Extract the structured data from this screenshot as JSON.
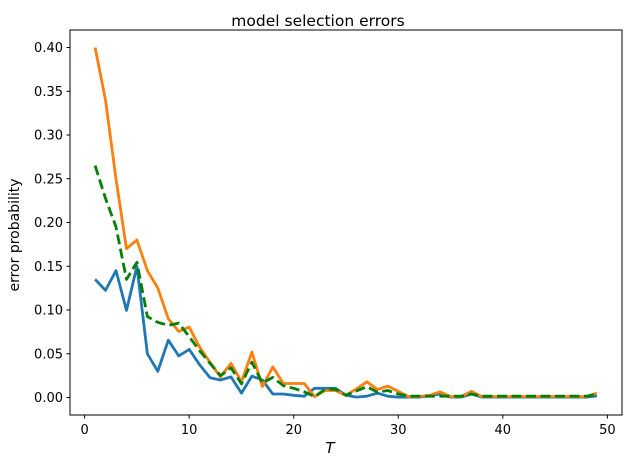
{
  "figure": {
    "title": "model selection errors",
    "xlabel": "T",
    "ylabel": "error probability"
  },
  "chart_data": {
    "type": "line",
    "title": "model selection errors",
    "xlabel": "T",
    "ylabel": "error probability",
    "grid": false,
    "legend_position": "none",
    "xlim": [
      -1.4,
      51.4
    ],
    "ylim": [
      -0.02,
      0.42
    ],
    "x_tick_labels": [
      "0",
      "10",
      "20",
      "30",
      "40",
      "50"
    ],
    "y_tick_labels": [
      "0.00",
      "0.05",
      "0.10",
      "0.15",
      "0.20",
      "0.25",
      "0.30",
      "0.35",
      "0.40"
    ],
    "x": [
      1,
      2,
      3,
      4,
      5,
      6,
      7,
      8,
      9,
      10,
      11,
      12,
      13,
      14,
      15,
      16,
      17,
      18,
      19,
      20,
      21,
      22,
      23,
      24,
      25,
      26,
      27,
      28,
      29,
      30,
      31,
      32,
      33,
      34,
      35,
      36,
      37,
      38,
      39,
      40,
      41,
      42,
      43,
      44,
      45,
      46,
      47,
      48,
      49
    ],
    "series": [
      {
        "name": "blue-solid-line",
        "color": "#1f77b4",
        "style": "solid",
        "values": [
          0.135,
          0.1225,
          0.145,
          0.0995,
          0.15,
          0.05,
          0.03,
          0.0655,
          0.0475,
          0.055,
          0.0375,
          0.0225,
          0.02,
          0.0235,
          0.005,
          0.0245,
          0.02,
          0.004,
          0.004,
          0.0025,
          0.0015,
          0.0105,
          0.0105,
          0.0105,
          0.0025,
          0.0005,
          0.0015,
          0.005,
          0.0015,
          0.0005,
          0.0005,
          0.0005,
          0.002,
          0.004,
          0.0005,
          0.0005,
          0.004,
          0.0005,
          0.0005,
          0.0005,
          0.0005,
          0.0005,
          0.0005,
          0.0005,
          0.0005,
          0.0005,
          0.0005,
          0.0005,
          0.002
        ]
      },
      {
        "name": "orange-solid-line",
        "color": "#ff7f0e",
        "style": "solid",
        "values": [
          0.4,
          0.34,
          0.25,
          0.17,
          0.18,
          0.145,
          0.125,
          0.09,
          0.0755,
          0.0805,
          0.0575,
          0.04,
          0.0235,
          0.039,
          0.018,
          0.052,
          0.0125,
          0.035,
          0.016,
          0.016,
          0.016,
          0.001,
          0.008,
          0.008,
          0.0025,
          0.01,
          0.018,
          0.009,
          0.013,
          0.007,
          0.001,
          0.001,
          0.0025,
          0.0065,
          0.001,
          0.001,
          0.007,
          0.001,
          0.001,
          0.001,
          0.001,
          0.001,
          0.001,
          0.001,
          0.001,
          0.001,
          0.001,
          0.001,
          0.005
        ]
      },
      {
        "name": "green-dashed-line",
        "color": "#008000",
        "style": "dashed",
        "values": [
          0.265,
          0.2275,
          0.195,
          0.135,
          0.1545,
          0.0925,
          0.086,
          0.0825,
          0.085,
          0.0695,
          0.0535,
          0.039,
          0.025,
          0.034,
          0.0155,
          0.0405,
          0.0165,
          0.023,
          0.0135,
          0.0105,
          0.0065,
          0.001,
          0.0095,
          0.0095,
          0.0025,
          0.0075,
          0.0125,
          0.006,
          0.008,
          0.004,
          0.0015,
          0.0015,
          0.0015,
          0.0015,
          0.0015,
          0.0015,
          0.004,
          0.0015,
          0.0015,
          0.0015,
          0.0015,
          0.0015,
          0.0015,
          0.0015,
          0.0015,
          0.0015,
          0.0015,
          0.0015,
          0.004
        ]
      }
    ]
  }
}
